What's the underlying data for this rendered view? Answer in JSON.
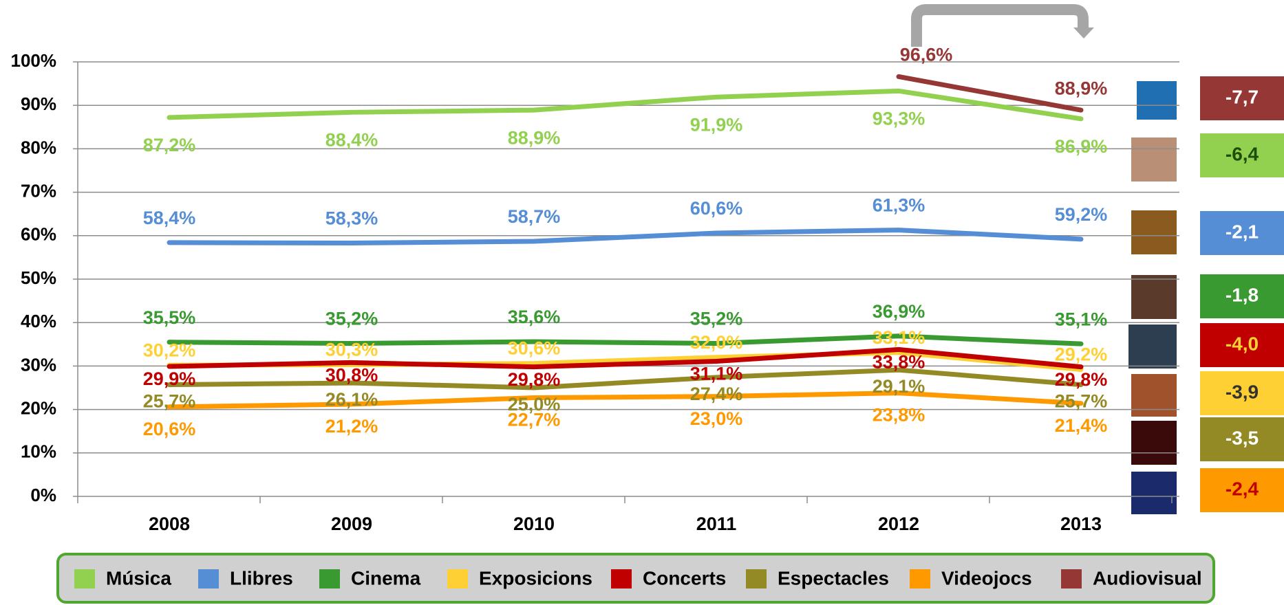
{
  "chart_data": {
    "type": "line",
    "categories": [
      "2008",
      "2009",
      "2010",
      "2011",
      "2012",
      "2013"
    ],
    "ylim": [
      0,
      100
    ],
    "yticks": [
      {
        "value": 0,
        "label": "0%"
      },
      {
        "value": 10,
        "label": "10%"
      },
      {
        "value": 20,
        "label": "20%"
      },
      {
        "value": 30,
        "label": "30%"
      },
      {
        "value": 40,
        "label": "40%"
      },
      {
        "value": 50,
        "label": "50%"
      },
      {
        "value": 60,
        "label": "60%"
      },
      {
        "value": 70,
        "label": "70%"
      },
      {
        "value": 80,
        "label": "80%"
      },
      {
        "value": 90,
        "label": "90%"
      },
      {
        "value": 100,
        "label": "100%"
      }
    ],
    "grid": true,
    "legend": "bottom",
    "series": [
      {
        "name": "Música",
        "color": "#92d050",
        "values": [
          87.2,
          88.4,
          88.9,
          91.9,
          93.3,
          86.9
        ],
        "value_labels": [
          "87,2%",
          "88,4%",
          "88,9%",
          "91,9%",
          "93,3%",
          "86,9%"
        ]
      },
      {
        "name": "Llibres",
        "color": "#558ed5",
        "values": [
          58.4,
          58.3,
          58.7,
          60.6,
          61.3,
          59.2
        ],
        "value_labels": [
          "58,4%",
          "58,3%",
          "58,7%",
          "60,6%",
          "61,3%",
          "59,2%"
        ]
      },
      {
        "name": "Cinema",
        "color": "#3a9a32",
        "values": [
          35.5,
          35.2,
          35.6,
          35.2,
          36.9,
          35.1
        ],
        "value_labels": [
          "35,5%",
          "35,2%",
          "35,6%",
          "35,2%",
          "36,9%",
          "35,1%"
        ]
      },
      {
        "name": "Exposicions",
        "color": "#ffd033",
        "values": [
          30.2,
          30.3,
          30.6,
          32.0,
          33.1,
          29.2
        ],
        "value_labels": [
          "30,2%",
          "30,3%",
          "30,6%",
          "32,0%",
          "33,1%",
          "29,2%"
        ]
      },
      {
        "name": "Concerts",
        "color": "#c00000",
        "values": [
          29.9,
          30.8,
          29.8,
          31.1,
          33.8,
          29.8
        ],
        "value_labels": [
          "29,9%",
          "30,8%",
          "29,8%",
          "31,1%",
          "33,8%",
          "29,8%"
        ]
      },
      {
        "name": "Espectacles",
        "color": "#948a25",
        "values": [
          25.7,
          26.1,
          25.0,
          27.4,
          29.1,
          25.7
        ],
        "value_labels": [
          "25,7%",
          "26,1%",
          "25,0%",
          "27,4%",
          "29,1%",
          "25,7%"
        ]
      },
      {
        "name": "Videojocs",
        "color": "#ff9900",
        "values": [
          20.6,
          21.2,
          22.7,
          23.0,
          23.8,
          21.4
        ],
        "value_labels": [
          "20,6%",
          "21,2%",
          "22,7%",
          "23,0%",
          "23,8%",
          "21,4%"
        ]
      },
      {
        "name": "Audiovisual",
        "color": "#953735",
        "values": [
          null,
          null,
          null,
          null,
          96.6,
          88.9
        ],
        "value_labels": [
          null,
          null,
          null,
          null,
          "96,6%",
          "88,9%"
        ]
      }
    ],
    "changes": {
      "values": [
        -7.7,
        -6.4,
        -2.1,
        -1.8,
        -4.0,
        -3.9,
        -3.5,
        -2.4
      ],
      "value_labels": [
        "-7,7",
        "-6,4",
        "-2,1",
        "-1,8",
        "-4,0",
        "-3,9",
        "-3,5",
        "-2,4"
      ],
      "colors": [
        "#953735",
        "#92d050",
        "#558ed5",
        "#3a9a32",
        "#c00000",
        "#ffd033",
        "#948a25",
        "#ff9900"
      ],
      "text_colors": [
        "#ffffff",
        "#1e4d0b",
        "#ffffff",
        "#ffffff",
        "#ffd033",
        "#333333",
        "#ffffff",
        "#c00000"
      ]
    }
  }
}
